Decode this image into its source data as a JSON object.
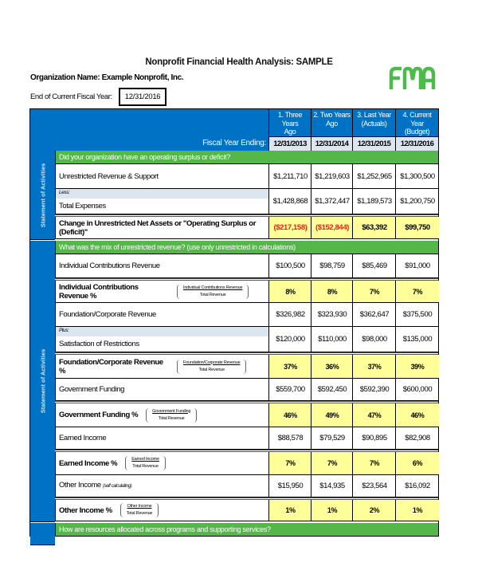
{
  "title": "Nonprofit Financial Health Analysis: SAMPLE",
  "organization": "Organization Name: Example Nonprofit, Inc.",
  "fiscal_year_label": "End of Current Fiscal Year:",
  "fiscal_year_value": "12/31/2016",
  "logo_text": "FMA",
  "colors": {
    "header_blue": "#0072c6",
    "section_green": "#55b649",
    "highlight_yellow": "#ffff99",
    "negative_red": "#e8231a",
    "logo_green": "#4cbb4a"
  },
  "header": {
    "fiscal_year_ending": "Fiscal Year Ending:",
    "columns": [
      {
        "line1": "1. Three Years",
        "line2": "Ago",
        "date": "12/31/2013"
      },
      {
        "line1": "2. Two Years",
        "line2": "Ago",
        "date": "12/31/2014"
      },
      {
        "line1": "3. Last Year",
        "line2": "(Actuals)",
        "date": "12/31/2015"
      },
      {
        "line1": "4. Current Year",
        "line2": "(Budget)",
        "date": "12/31/2016"
      }
    ]
  },
  "side_labels": [
    "Statement of Activities",
    "Statement of Activities",
    ""
  ],
  "rows": [
    {
      "type": "sec",
      "label": "Did your organization have an operating surplus or deficit?"
    },
    {
      "type": "value",
      "label": "Unrestricted Revenue & Support",
      "values": [
        "$1,211,710",
        "$1,219,603",
        "$1,252,965",
        "$1,300,500"
      ]
    },
    {
      "type": "split",
      "prefix": "Less:",
      "label": "Total Expenses",
      "values": [
        "$1,428,868",
        "$1,372,447",
        "$1,189,573",
        "$1,200,750"
      ]
    },
    {
      "type": "total",
      "label": "Change in Unrestricted Net Assets or \"Operating Surplus or (Deficit)\"",
      "values": [
        "($217,158)",
        "($152,844)",
        "$63,392",
        "$99,750"
      ]
    },
    {
      "type": "sec",
      "label": "What was the mix of unrestricted revenue? (use only unrestricted in calculations)"
    },
    {
      "type": "value",
      "label": "Individual Contributions Revenue",
      "values": [
        "$100,500",
        "$98,759",
        "$85,469",
        "$91,000"
      ]
    },
    {
      "type": "pct",
      "label": "Individual Contributions Revenue %",
      "numerator": "Individual Contributions Revenue",
      "denominator": "Total Revenue",
      "values": [
        "8%",
        "8%",
        "7%",
        "7%"
      ]
    },
    {
      "type": "value",
      "label": "Foundation/Corporate Revenue",
      "values": [
        "$326,982",
        "$323,930",
        "$362,647",
        "$375,500"
      ]
    },
    {
      "type": "split",
      "prefix": "Plus:",
      "label": "Satisfaction of Restrictions",
      "values": [
        "$120,000",
        "$110,000",
        "$98,000",
        "$135,000"
      ]
    },
    {
      "type": "pct",
      "label": "Foundation/Corporate Revenue %",
      "numerator": "Foundation/Corporate Revenue",
      "denominator": "Total Revenue",
      "values": [
        "37%",
        "36%",
        "37%",
        "39%"
      ]
    },
    {
      "type": "value",
      "label": "Government Funding",
      "values": [
        "$559,700",
        "$592,450",
        "$592,390",
        "$600,000"
      ]
    },
    {
      "type": "pct",
      "label": "Government Funding %",
      "numerator": "Government Funding",
      "denominator": "Total Revenue",
      "values": [
        "46%",
        "49%",
        "47%",
        "46%"
      ]
    },
    {
      "type": "value",
      "label": "Earned Income",
      "values": [
        "$88,578",
        "$79,529",
        "$90,895",
        "$82,908"
      ]
    },
    {
      "type": "pct",
      "label": "Earned Income %",
      "numerator": "Earned Income",
      "denominator": "Total Revenue",
      "values": [
        "7%",
        "7%",
        "7%",
        "6%"
      ]
    },
    {
      "type": "value",
      "label": "Other Income",
      "note": "(self calculating)",
      "values": [
        "$15,950",
        "$14,935",
        "$23,564",
        "$16,092"
      ]
    },
    {
      "type": "pct",
      "label": "Other Income %",
      "numerator": "Other Income",
      "denominator": "Total Revenue",
      "values": [
        "1%",
        "1%",
        "2%",
        "1%"
      ]
    },
    {
      "type": "sec",
      "label": "How are resources allocated across programs and supporting services?"
    }
  ]
}
